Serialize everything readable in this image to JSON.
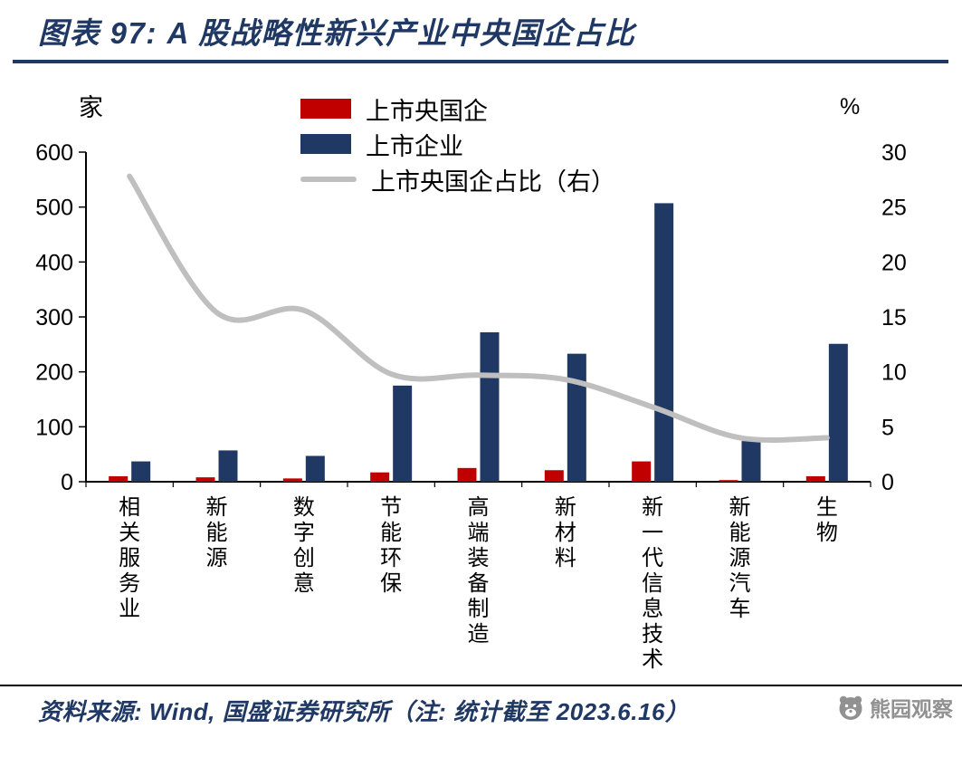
{
  "page": {
    "title": "图表 97:  A 股战略性新兴产业中央国企占比",
    "footer_source": "资料来源: Wind, 国盛证券研究所（注: 统计截至 2023.6.16）",
    "watermark": "熊园观察"
  },
  "chart_data": {
    "type": "bar",
    "title": "A 股战略性新兴产业中央国企占比",
    "left_axis": {
      "unit": "家",
      "lim": [
        0,
        600
      ],
      "ticks": [
        0,
        100,
        200,
        300,
        400,
        500,
        600
      ]
    },
    "right_axis": {
      "unit": "%",
      "lim": [
        0,
        30
      ],
      "ticks": [
        0,
        5,
        10,
        15,
        20,
        25,
        30
      ]
    },
    "categories": [
      "相关服务业",
      "新能源",
      "数字创意",
      "节能环保",
      "高端装备制造",
      "新材料",
      "新一代信息技术",
      "新能源汽车",
      "生物"
    ],
    "series": [
      {
        "name": "上市央国企",
        "type": "bar",
        "axis": "left",
        "color": "#C00000",
        "values": [
          10,
          8,
          6,
          17,
          25,
          21,
          37,
          3,
          10
        ]
      },
      {
        "name": "上市企业",
        "type": "bar",
        "axis": "left",
        "color": "#1F3864",
        "values": [
          37,
          57,
          47,
          175,
          272,
          233,
          507,
          74,
          251
        ]
      },
      {
        "name": "上市央国企占比（右）",
        "type": "line",
        "axis": "right",
        "color": "#BFBFBF",
        "values": [
          27.8,
          15.4,
          15.6,
          9.8,
          9.7,
          9.3,
          6.8,
          4.0,
          4.0
        ]
      }
    ],
    "legend_position": "top-center",
    "grid": false
  }
}
